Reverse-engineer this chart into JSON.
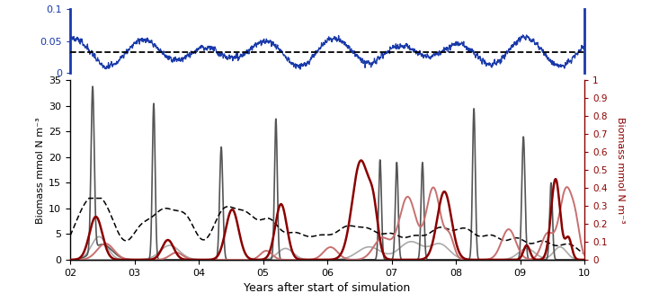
{
  "top_panel": {
    "ylim": [
      0,
      0.1
    ],
    "yticks": [
      0,
      0.05,
      0.1
    ],
    "dashed_value": 0.033,
    "color": "#1a3aaa",
    "xlabel": "",
    "ylabel": ""
  },
  "bottom_panel": {
    "ylim_left": [
      0,
      35
    ],
    "ylim_right": [
      0,
      1.0
    ],
    "yticks_left": [
      0,
      5,
      10,
      15,
      20,
      25,
      30,
      35
    ],
    "yticks_right": [
      0,
      0.1,
      0.2,
      0.3,
      0.4,
      0.5,
      0.6,
      0.7,
      0.8,
      0.9,
      1.0
    ],
    "xlabel": "Years after start of simulation",
    "ylabel_left": "Biomass mmol N m⁻³",
    "ylabel_right": "Biomass mmol N m⁻³",
    "color_dark_red": "#8b0000",
    "color_light_red": "#c87070",
    "color_dark_gray": "#555555",
    "color_light_gray": "#aaaaaa"
  },
  "xlim": [
    2,
    10
  ],
  "xticks": [
    2,
    3,
    4,
    5,
    6,
    7,
    8,
    9,
    10
  ],
  "xticklabels": [
    "02",
    "03",
    "04",
    "05",
    "06",
    "07",
    "08",
    "09",
    "10"
  ]
}
